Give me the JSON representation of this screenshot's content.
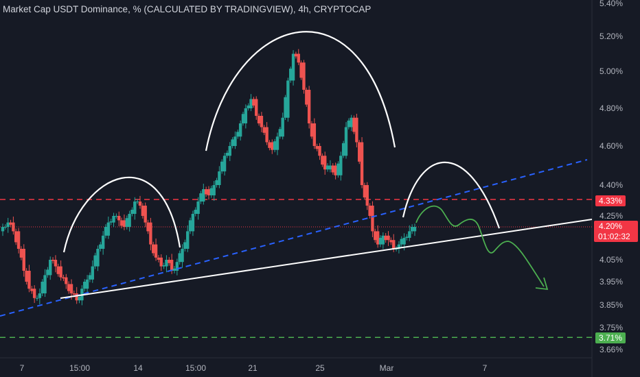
{
  "header": {
    "title": "Market Cap USDT Dominance, % (CALCULATED BY TRADINGVIEW), 4h, CRYPTOCAP"
  },
  "colors": {
    "background": "#161a25",
    "up": "#26a69a",
    "down": "#ef5350",
    "red_level": "#f23645",
    "green_level": "#4caf50",
    "blue_trend": "#2962ff",
    "support": "#ffffff",
    "arc": "#ffffff",
    "projection": "#4caf50"
  },
  "chart_data": {
    "type": "candlestick",
    "ylim": [
      3.64,
      5.42
    ],
    "y_ticks": [
      "5.40%",
      "5.20%",
      "5.00%",
      "4.80%",
      "4.60%",
      "4.40%",
      "4.25%",
      "4.05%",
      "3.95%",
      "3.85%",
      "3.75%",
      "3.66%"
    ],
    "x_ticks": [
      "7",
      "15:00",
      "14",
      "15:00",
      "21",
      "25",
      "Mar",
      "7"
    ],
    "price_labels": [
      {
        "text": "4.33%",
        "value": 4.33,
        "color": "#f23645"
      },
      {
        "text": "4.20%",
        "value": 4.2,
        "color": "#f23645"
      },
      {
        "text": "01:02:32",
        "value": 4.2,
        "color": "#f23645"
      },
      {
        "text": "3.71%",
        "value": 3.71,
        "color": "#4caf50"
      }
    ],
    "horizontal_levels": [
      {
        "value": 4.33,
        "style": "dashed",
        "color": "#f23645"
      },
      {
        "value": 3.71,
        "style": "dashed",
        "color": "#4caf50"
      },
      {
        "value": 4.2,
        "style": "dotted",
        "color": "#f23645"
      }
    ],
    "series": [
      {
        "value": 4.2
      },
      {
        "value": 4.22
      },
      {
        "value": 4.18
      },
      {
        "value": 4.1
      },
      {
        "value": 4.0
      },
      {
        "value": 3.92
      },
      {
        "value": 3.88
      },
      {
        "value": 3.9
      },
      {
        "value": 3.98
      },
      {
        "value": 4.05
      },
      {
        "value": 4.02
      },
      {
        "value": 3.97
      },
      {
        "value": 3.94
      },
      {
        "value": 3.9
      },
      {
        "value": 3.87
      },
      {
        "value": 3.92
      },
      {
        "value": 3.96
      },
      {
        "value": 4.02
      },
      {
        "value": 4.1
      },
      {
        "value": 4.16
      },
      {
        "value": 4.22
      },
      {
        "value": 4.25
      },
      {
        "value": 4.23
      },
      {
        "value": 4.2
      },
      {
        "value": 4.26
      },
      {
        "value": 4.32
      },
      {
        "value": 4.3
      },
      {
        "value": 4.22
      },
      {
        "value": 4.12
      },
      {
        "value": 4.06
      },
      {
        "value": 4.02
      },
      {
        "value": 4.05
      },
      {
        "value": 4.0
      },
      {
        "value": 4.04
      },
      {
        "value": 4.1
      },
      {
        "value": 4.18
      },
      {
        "value": 4.26
      },
      {
        "value": 4.32
      },
      {
        "value": 4.38
      },
      {
        "value": 4.35
      },
      {
        "value": 4.4
      },
      {
        "value": 4.47
      },
      {
        "value": 4.55
      },
      {
        "value": 4.6
      },
      {
        "value": 4.65
      },
      {
        "value": 4.72
      },
      {
        "value": 4.8
      },
      {
        "value": 4.85
      },
      {
        "value": 4.76
      },
      {
        "value": 4.7
      },
      {
        "value": 4.62
      },
      {
        "value": 4.58
      },
      {
        "value": 4.65
      },
      {
        "value": 4.75
      },
      {
        "value": 4.95
      },
      {
        "value": 5.1
      },
      {
        "value": 5.05
      },
      {
        "value": 4.9
      },
      {
        "value": 4.72
      },
      {
        "value": 4.6
      },
      {
        "value": 4.55
      },
      {
        "value": 4.48
      },
      {
        "value": 4.5
      },
      {
        "value": 4.45
      },
      {
        "value": 4.55
      },
      {
        "value": 4.7
      },
      {
        "value": 4.75
      },
      {
        "value": 4.62
      },
      {
        "value": 4.4
      },
      {
        "value": 4.3
      },
      {
        "value": 4.18
      },
      {
        "value": 4.12
      },
      {
        "value": 4.16
      },
      {
        "value": 4.14
      },
      {
        "value": 4.1
      },
      {
        "value": 4.12
      },
      {
        "value": 4.15
      },
      {
        "value": 4.18
      },
      {
        "value": 4.2
      }
    ]
  }
}
